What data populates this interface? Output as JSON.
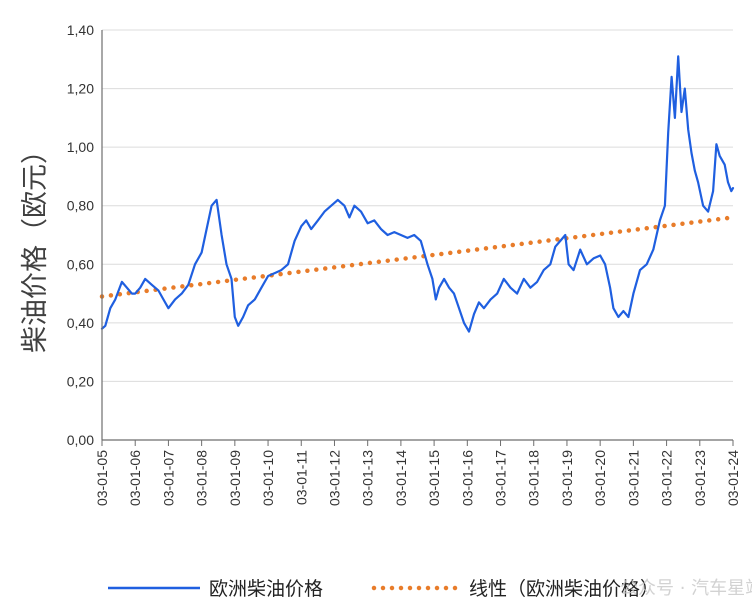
{
  "chart_data": {
    "type": "line",
    "title": "",
    "xlabel": "",
    "ylabel": "柴油价格（欧元）",
    "ylim": [
      0,
      1.4
    ],
    "yticks": [
      "0,00",
      "0,20",
      "0,40",
      "0,60",
      "0,80",
      "1,00",
      "1,20",
      "1,40"
    ],
    "xticks": [
      "03-01-05",
      "03-01-06",
      "03-01-07",
      "03-01-08",
      "03-01-09",
      "03-01-10",
      "03-01-11",
      "03-01-12",
      "03-01-13",
      "03-01-14",
      "03-01-15",
      "03-01-16",
      "03-01-17",
      "03-01-18",
      "03-01-19",
      "03-01-20",
      "03-01-21",
      "03-01-22",
      "03-01-23",
      "03-01-24"
    ],
    "grid": "horizontal",
    "legend_position": "bottom",
    "series": [
      {
        "name": "欧洲柴油价格",
        "style": "solid",
        "color": "#1f5fe0",
        "x": [
          2005.0,
          2005.1,
          2005.25,
          2005.4,
          2005.6,
          2005.75,
          2005.9,
          2006.0,
          2006.15,
          2006.3,
          2006.5,
          2006.7,
          2006.85,
          2007.0,
          2007.2,
          2007.4,
          2007.6,
          2007.8,
          2008.0,
          2008.15,
          2008.3,
          2008.45,
          2008.6,
          2008.75,
          2008.9,
          2009.0,
          2009.1,
          2009.25,
          2009.4,
          2009.6,
          2009.8,
          2010.0,
          2010.2,
          2010.4,
          2010.6,
          2010.8,
          2011.0,
          2011.15,
          2011.3,
          2011.5,
          2011.7,
          2011.9,
          2012.1,
          2012.3,
          2012.45,
          2012.6,
          2012.8,
          2013.0,
          2013.2,
          2013.4,
          2013.6,
          2013.8,
          2014.0,
          2014.2,
          2014.4,
          2014.6,
          2014.8,
          2014.95,
          2015.05,
          2015.15,
          2015.3,
          2015.45,
          2015.6,
          2015.75,
          2015.9,
          2016.05,
          2016.2,
          2016.35,
          2016.5,
          2016.7,
          2016.9,
          2017.1,
          2017.3,
          2017.5,
          2017.7,
          2017.9,
          2018.1,
          2018.3,
          2018.5,
          2018.65,
          2018.8,
          2018.95,
          2019.05,
          2019.2,
          2019.4,
          2019.6,
          2019.8,
          2020.0,
          2020.15,
          2020.3,
          2020.4,
          2020.55,
          2020.7,
          2020.85,
          2021.0,
          2021.2,
          2021.4,
          2021.6,
          2021.8,
          2021.95,
          2022.05,
          2022.15,
          2022.25,
          2022.35,
          2022.45,
          2022.55,
          2022.65,
          2022.75,
          2022.85,
          2022.95,
          2023.1,
          2023.25,
          2023.4,
          2023.5,
          2023.6,
          2023.75,
          2023.85,
          2023.95,
          2024.0
        ],
        "values": [
          0.38,
          0.39,
          0.45,
          0.48,
          0.54,
          0.52,
          0.5,
          0.5,
          0.52,
          0.55,
          0.53,
          0.51,
          0.48,
          0.45,
          0.48,
          0.5,
          0.53,
          0.6,
          0.64,
          0.72,
          0.8,
          0.82,
          0.7,
          0.6,
          0.55,
          0.42,
          0.39,
          0.42,
          0.46,
          0.48,
          0.52,
          0.56,
          0.57,
          0.58,
          0.6,
          0.68,
          0.73,
          0.75,
          0.72,
          0.75,
          0.78,
          0.8,
          0.82,
          0.8,
          0.76,
          0.8,
          0.78,
          0.74,
          0.75,
          0.72,
          0.7,
          0.71,
          0.7,
          0.69,
          0.7,
          0.68,
          0.6,
          0.55,
          0.48,
          0.52,
          0.55,
          0.52,
          0.5,
          0.45,
          0.4,
          0.37,
          0.43,
          0.47,
          0.45,
          0.48,
          0.5,
          0.55,
          0.52,
          0.5,
          0.55,
          0.52,
          0.54,
          0.58,
          0.6,
          0.66,
          0.68,
          0.7,
          0.6,
          0.58,
          0.65,
          0.6,
          0.62,
          0.63,
          0.6,
          0.52,
          0.45,
          0.42,
          0.44,
          0.42,
          0.5,
          0.58,
          0.6,
          0.65,
          0.75,
          0.8,
          1.05,
          1.24,
          1.1,
          1.31,
          1.12,
          1.2,
          1.06,
          0.98,
          0.92,
          0.88,
          0.8,
          0.78,
          0.85,
          1.01,
          0.97,
          0.94,
          0.88,
          0.85,
          0.86
        ]
      },
      {
        "name": "线性（欧洲柴油价格）",
        "style": "dotted",
        "color": "#e87c2a",
        "x": [
          2005.0,
          2024.0
        ],
        "values": [
          0.49,
          0.76
        ]
      }
    ]
  },
  "legend": {
    "items": [
      "欧洲柴油价格",
      "线性（欧洲柴油价格）"
    ]
  },
  "watermark": "公众号 · 汽车星站网"
}
